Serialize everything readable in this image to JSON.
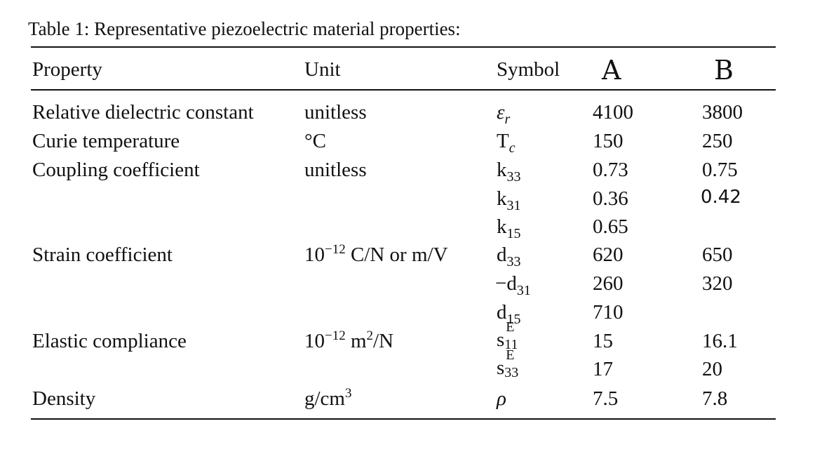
{
  "caption": "Table 1: Representative piezoelectric material properties:",
  "headers": {
    "property": "Property",
    "unit": "Unit",
    "symbol": "Symbol",
    "a": "A",
    "b": "B"
  },
  "rows": [
    {
      "property": "Relative dielectric constant",
      "unit": "unitless",
      "symbol_base": "ε",
      "symbol_sub": "r",
      "a": "4100",
      "b": "3800"
    },
    {
      "property": "Curie temperature",
      "unit": "°C",
      "symbol_base": "T",
      "symbol_sub": "c",
      "a": "150",
      "b": "250"
    },
    {
      "property": "Coupling coefficient",
      "unit": "unitless",
      "symbol_base": "k",
      "symbol_sub": "33",
      "a": "0.73",
      "b": "0.75"
    },
    {
      "property": "",
      "unit": "",
      "symbol_base": "k",
      "symbol_sub": "31",
      "a": "0.36",
      "b": "0.42"
    },
    {
      "property": "",
      "unit": "",
      "symbol_base": "k",
      "symbol_sub": "15",
      "a": "0.65",
      "b": ""
    },
    {
      "property": "Strain coefficient",
      "unit_base": "10",
      "unit_sup": "−12",
      "unit_rest": " C/N or m/V",
      "symbol_base": "d",
      "symbol_sub": "33",
      "a": "620",
      "b": "650"
    },
    {
      "property": "",
      "unit": "",
      "symbol_base": "−d",
      "symbol_sub": "31",
      "a": "260",
      "b": "320"
    },
    {
      "property": "",
      "unit": "",
      "symbol_base": "d",
      "symbol_sub": "15",
      "a": "710",
      "b": ""
    },
    {
      "property": "Elastic compliance",
      "unit_base": "10",
      "unit_sup": "−12",
      "unit_mid": " m",
      "unit_sup2": "2",
      "unit_rest": "/N",
      "symbol_base": "s",
      "symbol_sup": "E",
      "symbol_sub": "11",
      "a": "15",
      "b": "16.1"
    },
    {
      "property": "",
      "unit": "",
      "symbol_base": "s",
      "symbol_sup": "E",
      "symbol_sub": "33",
      "a": "17",
      "b": "20"
    },
    {
      "property": "Density",
      "unit_base": "g/cm",
      "unit_sup": "3",
      "symbol_base": "ρ",
      "a": "7.5",
      "b": "7.8"
    }
  ]
}
